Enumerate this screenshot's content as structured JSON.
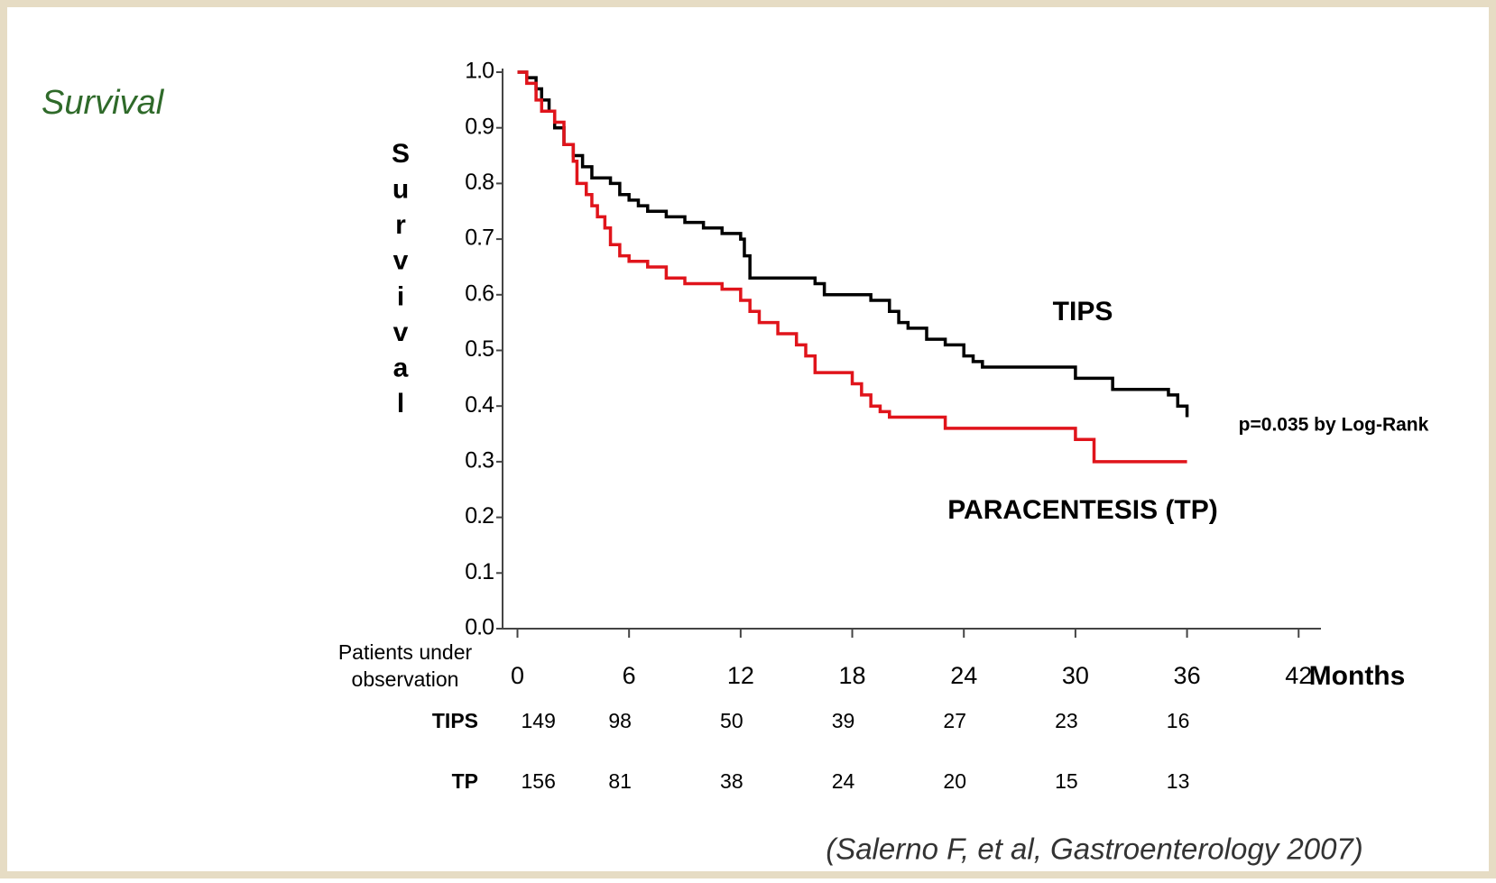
{
  "chart_data": {
    "type": "step",
    "title": "Survival",
    "y_label": "Survival",
    "x_label": "Months",
    "annotation": "p=0.035 by Log-Rank",
    "citation": "(Salerno F, et al, Gastroenterology 2007)",
    "xlim": [
      -0.8,
      43.2
    ],
    "xticks": [
      0,
      6,
      12,
      18,
      24,
      30,
      36,
      42
    ],
    "ylim": [
      0,
      1
    ],
    "yticks": [
      {
        "value": 0,
        "label": "0.0"
      },
      0.1,
      0.2,
      0.3,
      0.4,
      0.5,
      0.6,
      0.7,
      0.8,
      0.9,
      {
        "value": 1,
        "label": "1.0"
      }
    ],
    "series": [
      {
        "name": "TIPS",
        "color": "#000000",
        "x": [
          0,
          0.5,
          1,
          1.3,
          1.7,
          2,
          2.5,
          3,
          3.5,
          4,
          5,
          5.5,
          6,
          6.5,
          7,
          8,
          9,
          10,
          11,
          12,
          12.2,
          12.5,
          16,
          16.5,
          19,
          20,
          20.5,
          21,
          22,
          23,
          24,
          24.5,
          25,
          30,
          32,
          35,
          35.5,
          36
        ],
        "values": [
          1.0,
          0.99,
          0.97,
          0.95,
          0.93,
          0.9,
          0.87,
          0.85,
          0.83,
          0.81,
          0.8,
          0.78,
          0.77,
          0.76,
          0.75,
          0.74,
          0.73,
          0.72,
          0.71,
          0.7,
          0.67,
          0.63,
          0.62,
          0.6,
          0.59,
          0.57,
          0.55,
          0.54,
          0.52,
          0.51,
          0.49,
          0.48,
          0.47,
          0.45,
          0.43,
          0.42,
          0.4,
          0.38
        ]
      },
      {
        "name": "PARACENTESIS (TP)",
        "color": "#e0141b",
        "x": [
          0,
          0.5,
          1,
          1.3,
          2,
          2.5,
          3,
          3.2,
          3.7,
          4,
          4.3,
          4.7,
          5,
          5.5,
          6,
          7,
          8,
          9,
          11,
          12,
          12.5,
          13,
          14,
          15,
          15.5,
          16,
          18,
          18.5,
          19,
          19.5,
          20,
          23,
          30,
          31,
          36
        ],
        "values": [
          1.0,
          0.98,
          0.95,
          0.93,
          0.91,
          0.87,
          0.84,
          0.8,
          0.78,
          0.76,
          0.74,
          0.72,
          0.69,
          0.67,
          0.66,
          0.65,
          0.63,
          0.62,
          0.61,
          0.59,
          0.57,
          0.55,
          0.53,
          0.51,
          0.49,
          0.46,
          0.44,
          0.42,
          0.4,
          0.39,
          0.38,
          0.36,
          0.34,
          0.3,
          0.3
        ]
      }
    ],
    "risk_table": {
      "header": [
        "Patients under",
        "observation"
      ],
      "times": [
        0,
        6,
        12,
        18,
        24,
        30,
        36
      ],
      "rows": [
        {
          "label": "TIPS",
          "values": [
            149,
            98,
            50,
            39,
            27,
            23,
            16
          ]
        },
        {
          "label": "TP",
          "values": [
            156,
            81,
            38,
            24,
            20,
            15,
            13
          ]
        }
      ]
    }
  }
}
